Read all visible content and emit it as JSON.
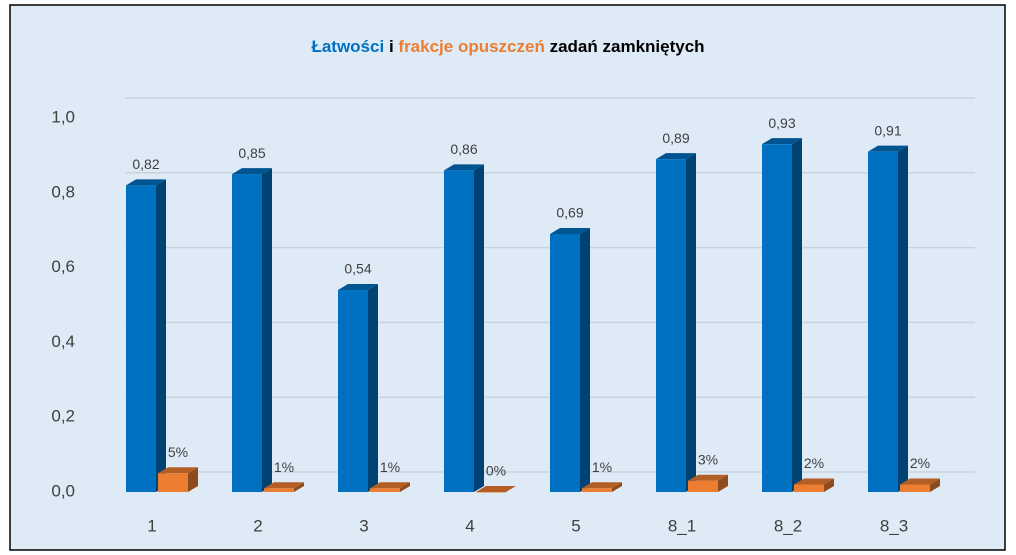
{
  "chart_data": {
    "type": "bar3d",
    "title_parts": [
      {
        "text": "Łatwości",
        "color": "#0070c0"
      },
      {
        "text": "i",
        "color": "#000000"
      },
      {
        "text": "frakcje opuszczeń",
        "color": "#ed7d31"
      },
      {
        "text": "zadań zamkniętych",
        "color": "#000000"
      }
    ],
    "categories": [
      "1",
      "2",
      "3",
      "4",
      "5",
      "8_1",
      "8_2",
      "8_3"
    ],
    "series": [
      {
        "color": "#0070c0",
        "values": [
          0.82,
          0.85,
          0.54,
          0.86,
          0.69,
          0.89,
          0.93,
          0.91
        ],
        "value_labels": [
          "0,82",
          "0,85",
          "0,54",
          "0,86",
          "0,69",
          "0,89",
          "0,93",
          "0,91"
        ]
      },
      {
        "color": "#ed7d31",
        "values": [
          0.05,
          0.01,
          0.01,
          0.0,
          0.01,
          0.03,
          0.02,
          0.02
        ],
        "value_labels": [
          "5%",
          "1%",
          "1%",
          "0%",
          "1%",
          "3%",
          "2%",
          "2%"
        ]
      }
    ],
    "ylim": [
      0,
      1.0
    ],
    "yticks": [
      {
        "value": 0,
        "label": "0,0"
      },
      {
        "value": 0.2,
        "label": "0,2"
      },
      {
        "value": 0.4,
        "label": "0,4"
      },
      {
        "value": 0.6,
        "label": "0,6"
      },
      {
        "value": 0.8,
        "label": "0,8"
      },
      {
        "value": 1.0,
        "label": "1,0"
      }
    ],
    "grid": true
  }
}
